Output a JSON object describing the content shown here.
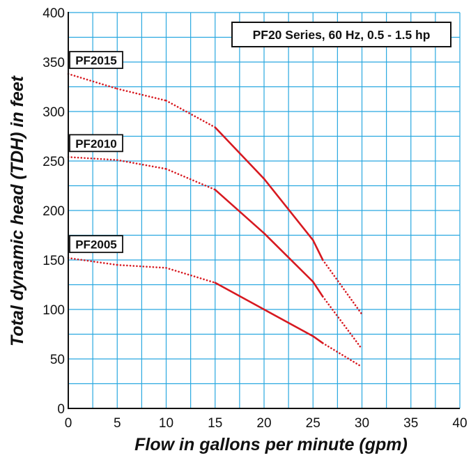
{
  "chart_data": {
    "type": "line",
    "title": "PF20 Series, 60 Hz, 0.5 - 1.5 hp",
    "xlabel": "Flow in gallons per minute (gpm)",
    "ylabel": "Total dynamic head (TDH) in feet",
    "xlim": [
      0,
      40
    ],
    "ylim": [
      0,
      400
    ],
    "x_ticks": [
      0,
      5,
      10,
      15,
      20,
      25,
      30,
      35,
      40
    ],
    "y_ticks": [
      0,
      50,
      100,
      150,
      200,
      250,
      300,
      350,
      400
    ],
    "grid": true,
    "minor_grid_step_x": 2.5,
    "minor_grid_step_y": 25,
    "colors": {
      "grid": "#29a8e0",
      "curve": "#d71920",
      "axis": "#111111"
    },
    "series": [
      {
        "name": "PF2015",
        "points": [
          [
            0,
            338
          ],
          [
            5,
            323
          ],
          [
            10,
            311
          ],
          [
            15,
            284
          ],
          [
            20,
            232
          ],
          [
            25,
            170
          ],
          [
            26,
            150
          ],
          [
            30,
            95
          ]
        ],
        "solid_range": [
          15,
          26
        ]
      },
      {
        "name": "PF2010",
        "points": [
          [
            0,
            254
          ],
          [
            5,
            251
          ],
          [
            10,
            242
          ],
          [
            15,
            221
          ],
          [
            20,
            177
          ],
          [
            25,
            128
          ],
          [
            26,
            113
          ],
          [
            30,
            60
          ]
        ],
        "solid_range": [
          15,
          26
        ]
      },
      {
        "name": "PF2005",
        "points": [
          [
            0,
            152
          ],
          [
            5,
            145
          ],
          [
            10,
            142
          ],
          [
            15,
            127
          ],
          [
            20,
            100
          ],
          [
            25,
            73
          ],
          [
            26,
            66
          ],
          [
            30,
            42
          ]
        ],
        "solid_range": [
          15,
          26
        ]
      }
    ]
  }
}
